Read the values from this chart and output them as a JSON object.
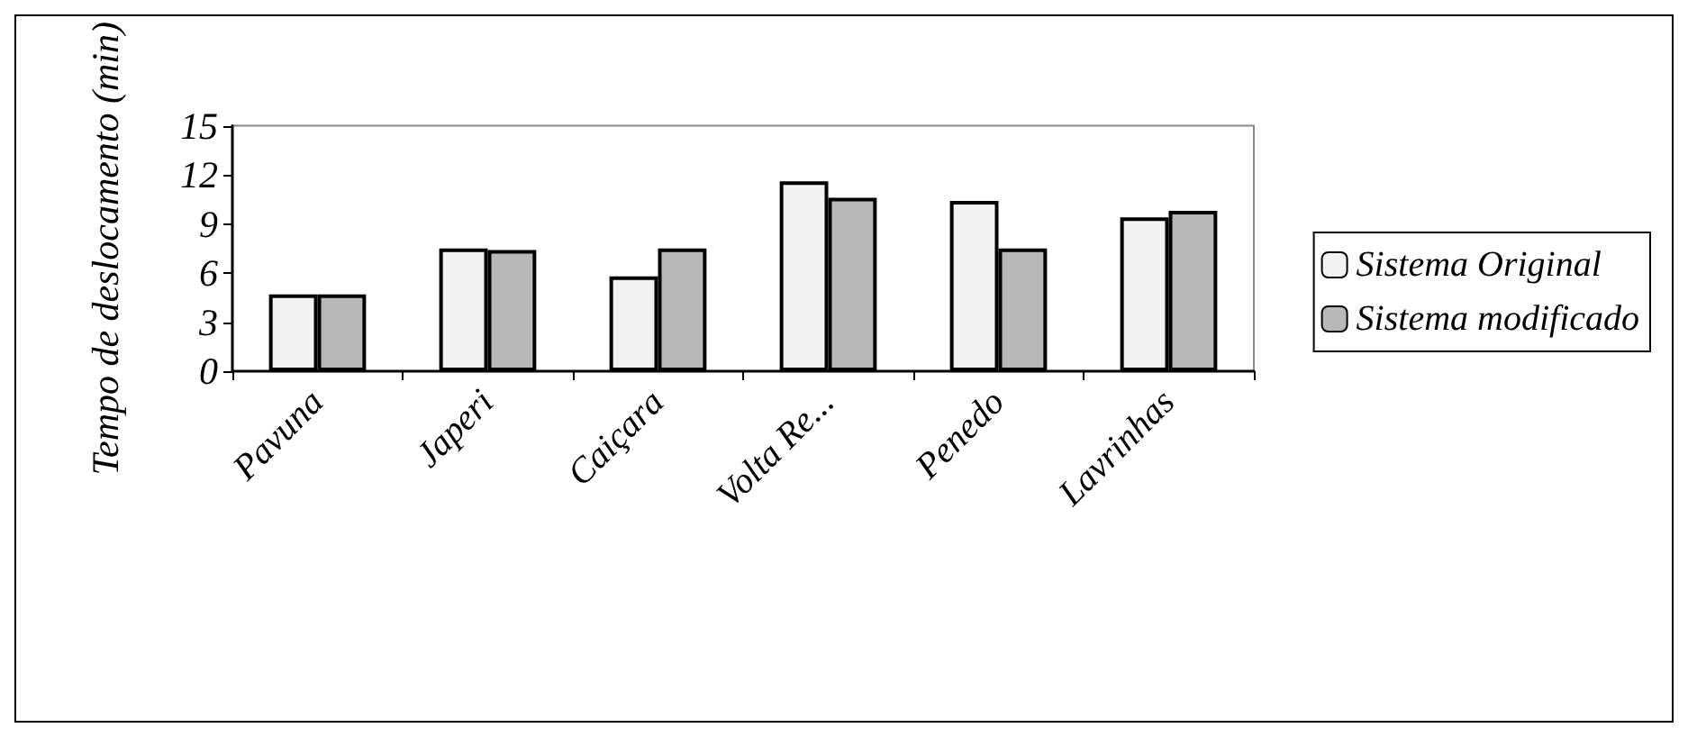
{
  "chart_data": {
    "type": "bar",
    "ylabel": "Tempo de deslocamento (min)",
    "categories": [
      "Pavuna",
      "Japeri",
      "Caiçara",
      "Volta Re...",
      "Penedo",
      "Lavrinhas"
    ],
    "series": [
      {
        "name": "Sistema Original",
        "color": "#f2f2f2",
        "values": [
          4.7,
          7.5,
          5.8,
          11.6,
          10.4,
          9.4
        ]
      },
      {
        "name": "Sistema modificado",
        "color": "#b8b8b8",
        "values": [
          4.7,
          7.4,
          7.5,
          10.6,
          7.5,
          9.8
        ]
      }
    ],
    "ylim": [
      0,
      15
    ],
    "yticks": [
      0,
      3,
      6,
      9,
      12,
      15
    ],
    "grid": false,
    "legend": "right"
  }
}
